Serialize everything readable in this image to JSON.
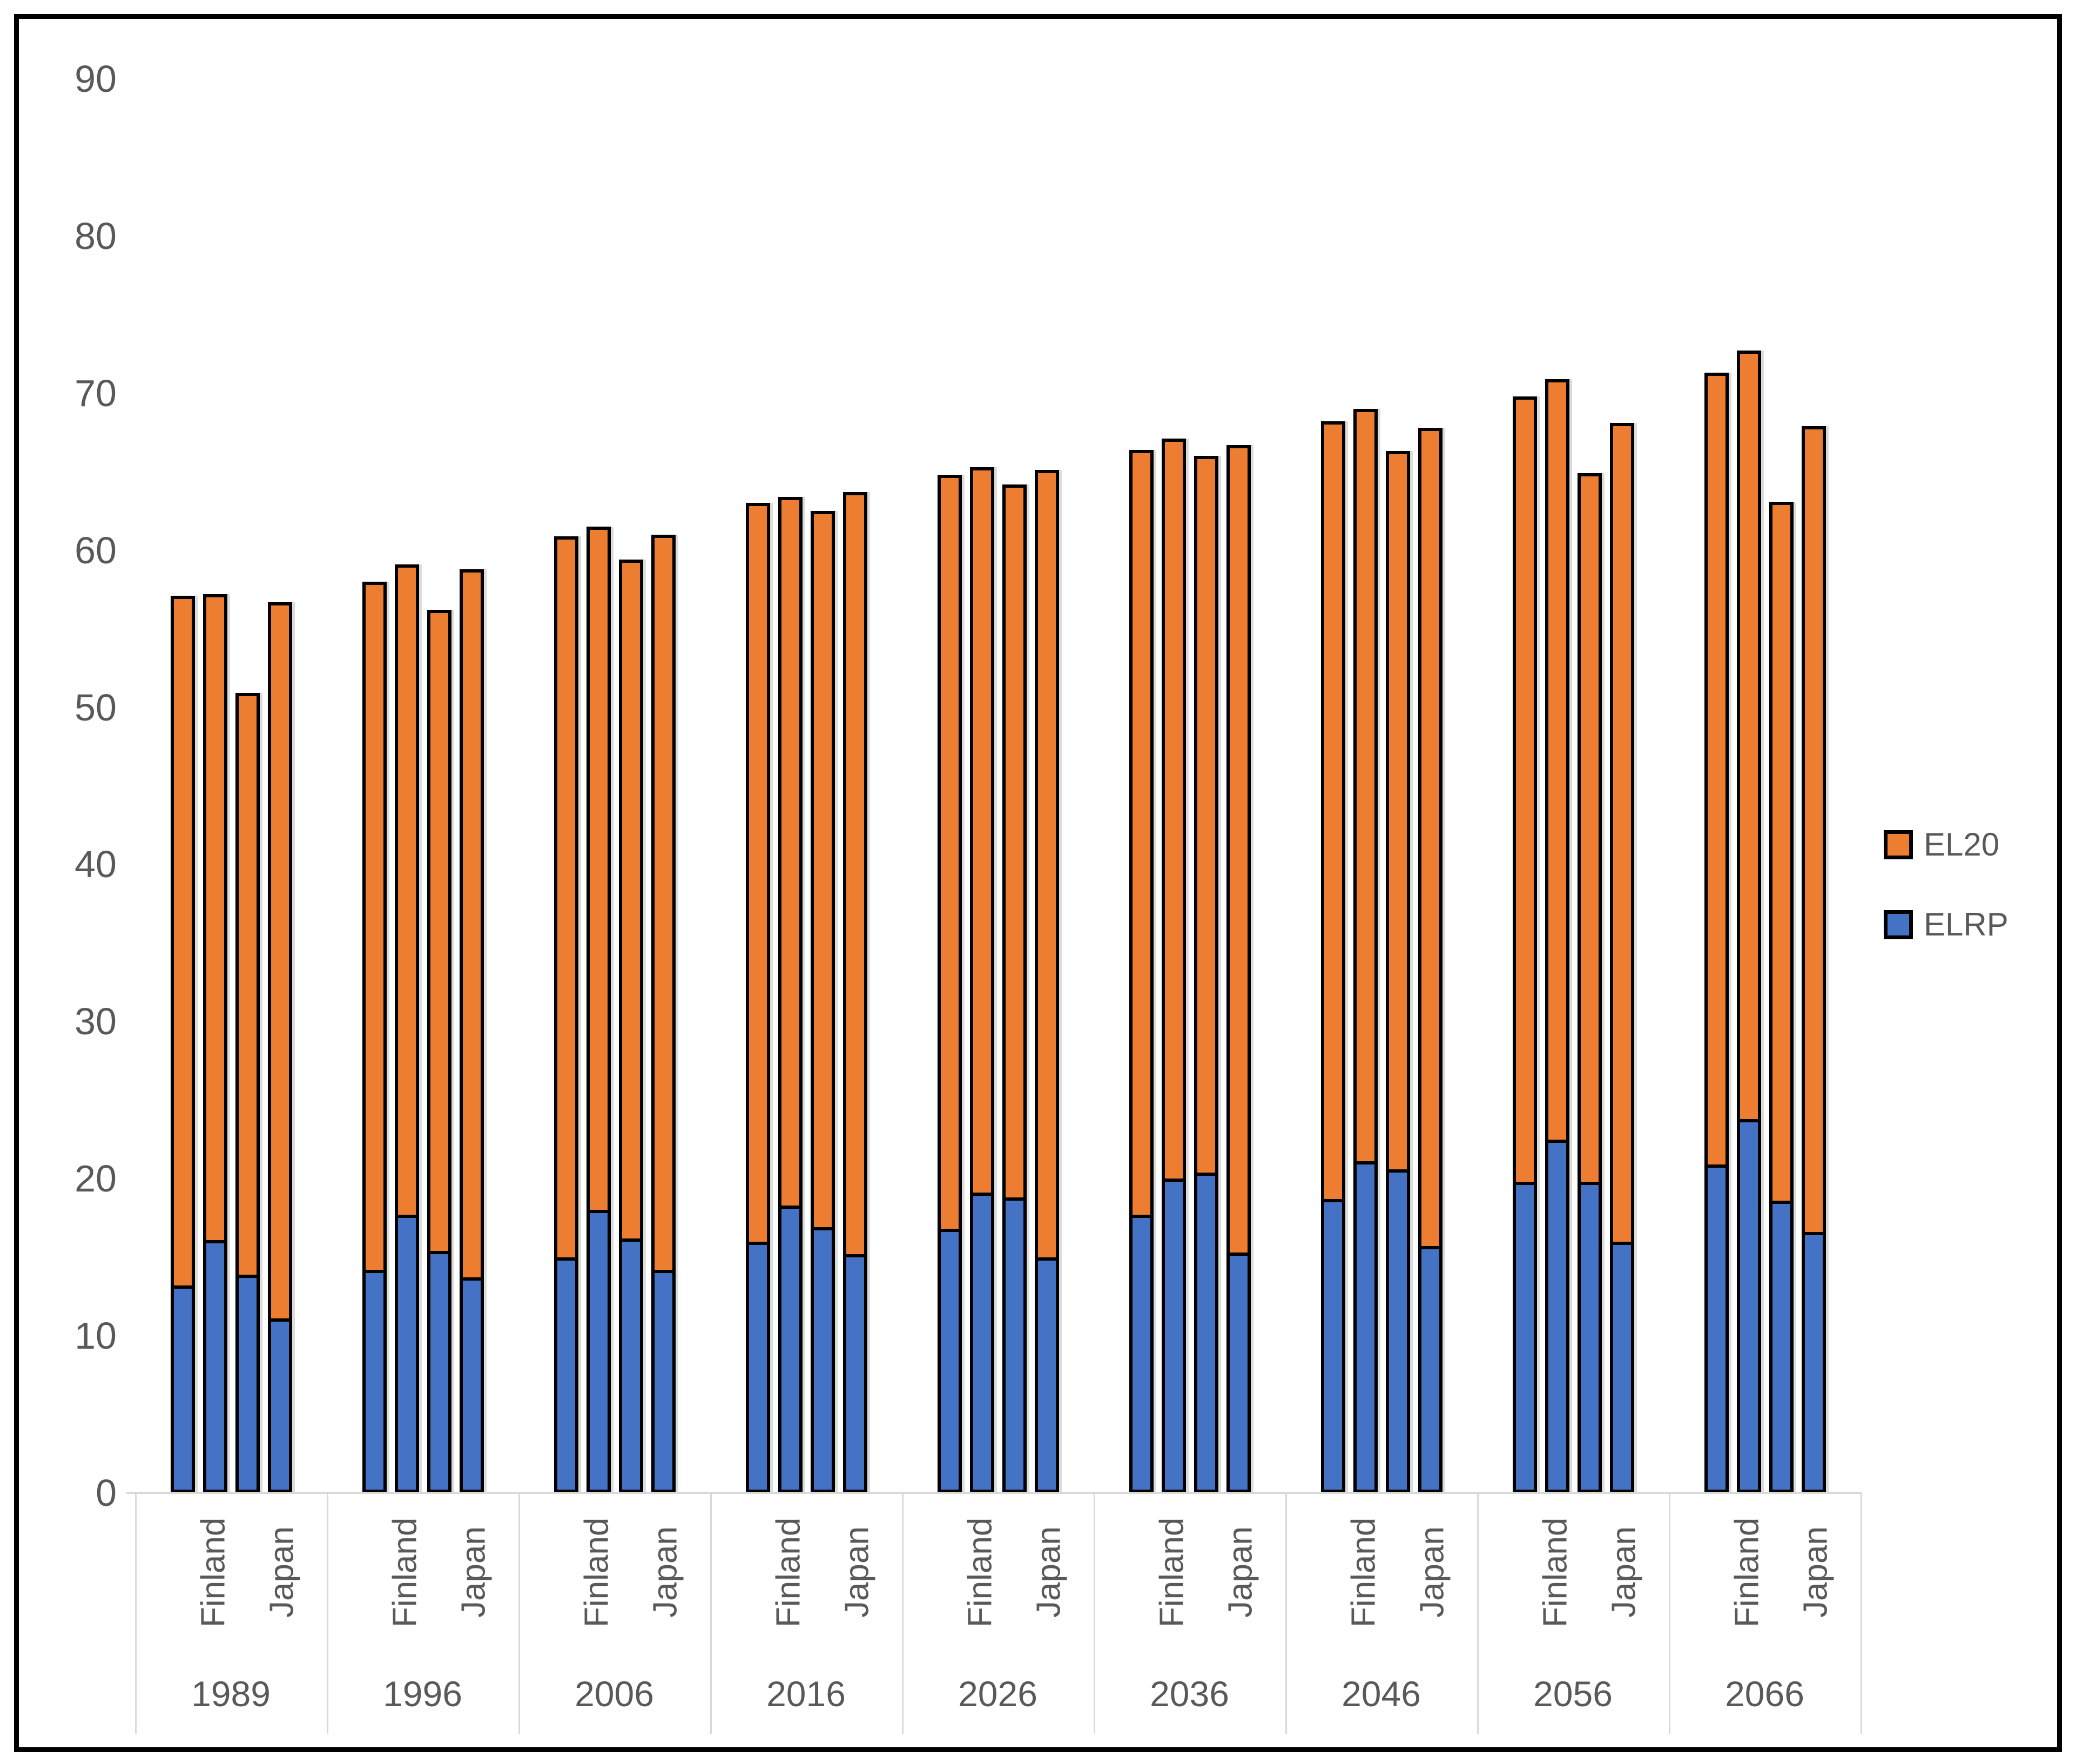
{
  "chart_data": {
    "type": "bar",
    "stacked": true,
    "title": "",
    "xlabel": "",
    "ylabel": "",
    "ylim": [
      0,
      90
    ],
    "y_ticks": [
      0,
      10,
      20,
      30,
      40,
      50,
      60,
      70,
      80,
      90
    ],
    "grid": false,
    "legend_position": "right-middle",
    "legend": [
      {
        "name": "EL20",
        "color": "#ED7D31"
      },
      {
        "name": "ELRP",
        "color": "#4472C4"
      }
    ],
    "categories": [
      "1989",
      "1996",
      "2006",
      "2016",
      "2026",
      "2036",
      "2046",
      "2056",
      "2066"
    ],
    "sub_categories": [
      "Finland",
      "Japan"
    ],
    "bars_per_group": 4,
    "note": "Each year group has 4 stacked bars: two for Finland then two for Japan. ELRP (blue) is the bottom segment, EL20 (orange) the top segment.",
    "groups": [
      {
        "year": "1989",
        "bars": [
          {
            "country": "Finland",
            "elrp": 13.2,
            "el20": 43.9
          },
          {
            "country": "Finland",
            "elrp": 16.1,
            "el20": 41.1
          },
          {
            "country": "Japan",
            "elrp": 13.9,
            "el20": 37.0
          },
          {
            "country": "Japan",
            "elrp": 11.1,
            "el20": 45.6
          }
        ]
      },
      {
        "year": "1996",
        "bars": [
          {
            "country": "Finland",
            "elrp": 14.2,
            "el20": 43.8
          },
          {
            "country": "Finland",
            "elrp": 17.7,
            "el20": 41.4
          },
          {
            "country": "Japan",
            "elrp": 15.4,
            "el20": 40.8
          },
          {
            "country": "Japan",
            "elrp": 13.7,
            "el20": 45.1
          }
        ]
      },
      {
        "year": "2006",
        "bars": [
          {
            "country": "Finland",
            "elrp": 15.0,
            "el20": 45.9
          },
          {
            "country": "Finland",
            "elrp": 18.0,
            "el20": 43.5
          },
          {
            "country": "Japan",
            "elrp": 16.2,
            "el20": 43.2
          },
          {
            "country": "Japan",
            "elrp": 14.2,
            "el20": 46.8
          }
        ]
      },
      {
        "year": "2016",
        "bars": [
          {
            "country": "Finland",
            "elrp": 16.0,
            "el20": 47.0
          },
          {
            "country": "Finland",
            "elrp": 18.3,
            "el20": 45.1
          },
          {
            "country": "Japan",
            "elrp": 16.9,
            "el20": 45.6
          },
          {
            "country": "Japan",
            "elrp": 15.2,
            "el20": 48.5
          }
        ]
      },
      {
        "year": "2026",
        "bars": [
          {
            "country": "Finland",
            "elrp": 16.8,
            "el20": 48.0
          },
          {
            "country": "Finland",
            "elrp": 19.1,
            "el20": 46.2
          },
          {
            "country": "Japan",
            "elrp": 18.8,
            "el20": 45.4
          },
          {
            "country": "Japan",
            "elrp": 15.0,
            "el20": 50.1
          }
        ]
      },
      {
        "year": "2036",
        "bars": [
          {
            "country": "Finland",
            "elrp": 17.7,
            "el20": 48.7
          },
          {
            "country": "Finland",
            "elrp": 20.0,
            "el20": 47.1
          },
          {
            "country": "Japan",
            "elrp": 20.4,
            "el20": 45.6
          },
          {
            "country": "Japan",
            "elrp": 15.3,
            "el20": 51.4
          }
        ]
      },
      {
        "year": "2046",
        "bars": [
          {
            "country": "Finland",
            "elrp": 18.7,
            "el20": 49.5
          },
          {
            "country": "Finland",
            "elrp": 21.1,
            "el20": 47.9
          },
          {
            "country": "Japan",
            "elrp": 20.6,
            "el20": 45.7
          },
          {
            "country": "Japan",
            "elrp": 15.7,
            "el20": 52.1
          }
        ]
      },
      {
        "year": "2056",
        "bars": [
          {
            "country": "Finland",
            "elrp": 19.8,
            "el20": 50.0
          },
          {
            "country": "Finland",
            "elrp": 22.5,
            "el20": 48.4
          },
          {
            "country": "Japan",
            "elrp": 19.8,
            "el20": 45.1
          },
          {
            "country": "Japan",
            "elrp": 16.0,
            "el20": 52.1
          }
        ]
      },
      {
        "year": "2066",
        "bars": [
          {
            "country": "Finland",
            "elrp": 20.9,
            "el20": 50.4
          },
          {
            "country": "Finland",
            "elrp": 23.8,
            "el20": 48.9
          },
          {
            "country": "Japan",
            "elrp": 18.6,
            "el20": 44.5
          },
          {
            "country": "Japan",
            "elrp": 16.6,
            "el20": 51.3
          }
        ]
      }
    ]
  },
  "colors": {
    "el20_fill": "#ED7D31",
    "elrp_fill": "#4472C4",
    "bar_border": "#000000",
    "axis_text": "#595959",
    "band_lines": "#d9d9d9",
    "figure_border": "#000000",
    "background": "#ffffff"
  }
}
